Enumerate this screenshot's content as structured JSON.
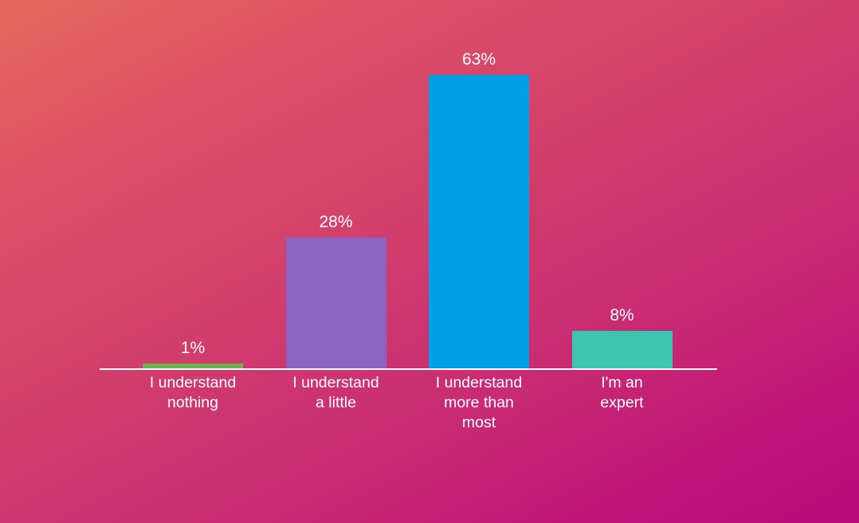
{
  "colors": {
    "background_start": "#e56a5d",
    "background_end": "#bb0a7c",
    "axis": "#ffffff",
    "text": "#ffffff"
  },
  "chart_data": {
    "type": "bar",
    "categories": [
      "I understand nothing",
      "I understand a little",
      "I understand more than most",
      "I'm an expert"
    ],
    "category_lines": [
      [
        "I understand",
        "nothing"
      ],
      [
        "I understand",
        "a little"
      ],
      [
        "I understand",
        "more than",
        "most"
      ],
      [
        "I'm an",
        "expert"
      ]
    ],
    "values": [
      1,
      28,
      63,
      8
    ],
    "value_labels": [
      "1%",
      "28%",
      "63%",
      "8%"
    ],
    "unit": "%",
    "bar_colors": [
      "#6cb24f",
      "#8a63c4",
      "#00a0e6",
      "#3cc6b1"
    ],
    "title": "",
    "xlabel": "",
    "ylabel": "",
    "ylim": [
      0,
      63
    ],
    "grid": false,
    "legend": "none"
  }
}
